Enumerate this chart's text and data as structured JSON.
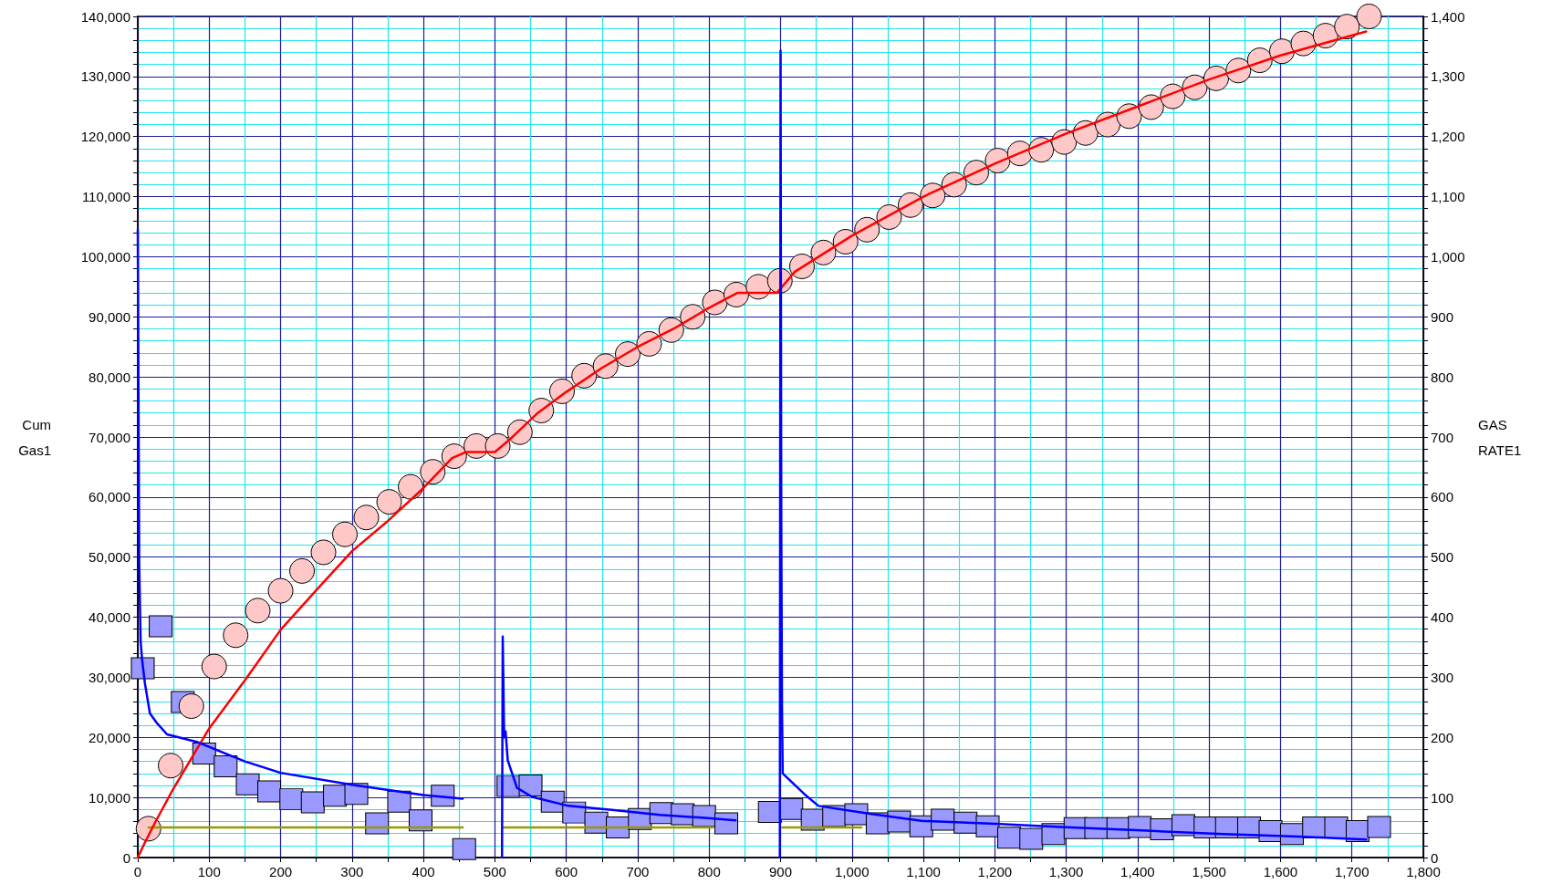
{
  "chart_data": {
    "type": "scatter",
    "ylabel": "Cum\nGas1",
    "y2label": "GAS\nRATE1",
    "xlim": [
      0,
      1800
    ],
    "xticks": [
      0,
      {
        "value": 50,
        "label": null
      },
      100,
      {
        "value": 150,
        "label": null
      },
      200,
      {
        "value": 250,
        "label": null
      },
      300,
      {
        "value": 350,
        "label": null
      },
      400,
      {
        "value": 450,
        "label": null
      },
      500,
      {
        "value": 550,
        "label": null
      },
      600,
      {
        "value": 650,
        "label": null
      },
      700,
      {
        "value": 750,
        "label": null
      },
      800,
      {
        "value": 850,
        "label": null
      },
      900,
      {
        "value": 950,
        "label": null
      },
      {
        "value": 1000,
        "label": "1,000"
      },
      {
        "value": 1050,
        "label": null
      },
      {
        "value": 1100,
        "label": "1,100"
      },
      {
        "value": 1150,
        "label": null
      },
      {
        "value": 1200,
        "label": "1,200"
      },
      {
        "value": 1250,
        "label": null
      },
      {
        "value": 1300,
        "label": "1,300"
      },
      {
        "value": 1350,
        "label": null
      },
      {
        "value": 1400,
        "label": "1,400"
      },
      {
        "value": 1450,
        "label": null
      },
      {
        "value": 1500,
        "label": "1,500"
      },
      {
        "value": 1550,
        "label": null
      },
      {
        "value": 1600,
        "label": "1,600"
      },
      {
        "value": 1650,
        "label": null
      },
      {
        "value": 1700,
        "label": "1,700"
      },
      {
        "value": 1750,
        "label": null
      },
      {
        "value": 1800,
        "label": "1,800"
      }
    ],
    "ylim": [
      0,
      140000
    ],
    "yticks": [
      0,
      {
        "value": 2000,
        "label": null
      },
      {
        "value": 4000,
        "label": null
      },
      {
        "value": 6000,
        "label": null
      },
      {
        "value": 8000,
        "label": null
      },
      {
        "value": 10000,
        "label": "10,000"
      },
      {
        "value": 12000,
        "label": null
      },
      {
        "value": 14000,
        "label": null
      },
      {
        "value": 16000,
        "label": null
      },
      {
        "value": 18000,
        "label": null
      },
      {
        "value": 20000,
        "label": "20,000"
      },
      {
        "value": 22000,
        "label": null
      },
      {
        "value": 24000,
        "label": null
      },
      {
        "value": 26000,
        "label": null
      },
      {
        "value": 28000,
        "label": null
      },
      {
        "value": 30000,
        "label": "30,000"
      },
      {
        "value": 32000,
        "label": null
      },
      {
        "value": 34000,
        "label": null
      },
      {
        "value": 36000,
        "label": null
      },
      {
        "value": 38000,
        "label": null
      },
      {
        "value": 40000,
        "label": "40,000"
      },
      {
        "value": 42000,
        "label": null
      },
      {
        "value": 44000,
        "label": null
      },
      {
        "value": 46000,
        "label": null
      },
      {
        "value": 48000,
        "label": null
      },
      {
        "value": 50000,
        "label": "50,000"
      },
      {
        "value": 52000,
        "label": null
      },
      {
        "value": 54000,
        "label": null
      },
      {
        "value": 56000,
        "label": null
      },
      {
        "value": 58000,
        "label": null
      },
      {
        "value": 60000,
        "label": "60,000"
      },
      {
        "value": 62000,
        "label": null
      },
      {
        "value": 64000,
        "label": null
      },
      {
        "value": 66000,
        "label": null
      },
      {
        "value": 68000,
        "label": null
      },
      {
        "value": 70000,
        "label": "70,000"
      },
      {
        "value": 72000,
        "label": null
      },
      {
        "value": 74000,
        "label": null
      },
      {
        "value": 76000,
        "label": null
      },
      {
        "value": 78000,
        "label": null
      },
      {
        "value": 80000,
        "label": "80,000"
      },
      {
        "value": 82000,
        "label": null
      },
      {
        "value": 84000,
        "label": null
      },
      {
        "value": 86000,
        "label": null
      },
      {
        "value": 88000,
        "label": null
      },
      {
        "value": 90000,
        "label": "90,000"
      },
      {
        "value": 92000,
        "label": null
      },
      {
        "value": 94000,
        "label": null
      },
      {
        "value": 96000,
        "label": null
      },
      {
        "value": 98000,
        "label": null
      },
      {
        "value": 100000,
        "label": "100,000"
      },
      {
        "value": 102000,
        "label": null
      },
      {
        "value": 104000,
        "label": null
      },
      {
        "value": 106000,
        "label": null
      },
      {
        "value": 108000,
        "label": null
      },
      {
        "value": 110000,
        "label": "110,000"
      },
      {
        "value": 112000,
        "label": null
      },
      {
        "value": 114000,
        "label": null
      },
      {
        "value": 116000,
        "label": null
      },
      {
        "value": 118000,
        "label": null
      },
      {
        "value": 120000,
        "label": "120,000"
      },
      {
        "value": 122000,
        "label": null
      },
      {
        "value": 124000,
        "label": null
      },
      {
        "value": 126000,
        "label": null
      },
      {
        "value": 128000,
        "label": null
      },
      {
        "value": 130000,
        "label": "130,000"
      },
      {
        "value": 132000,
        "label": null
      },
      {
        "value": 134000,
        "label": null
      },
      {
        "value": 136000,
        "label": null
      },
      {
        "value": 138000,
        "label": null
      },
      {
        "value": 140000,
        "label": "140,000"
      }
    ],
    "y2lim": [
      0,
      1400
    ],
    "y2ticks": [
      0,
      {
        "value": 20,
        "label": null
      },
      {
        "value": 40,
        "label": null
      },
      {
        "value": 60,
        "label": null
      },
      {
        "value": 80,
        "label": null
      },
      100,
      {
        "value": 120,
        "label": null
      },
      {
        "value": 140,
        "label": null
      },
      {
        "value": 160,
        "label": null
      },
      {
        "value": 180,
        "label": null
      },
      200,
      {
        "value": 220,
        "label": null
      },
      {
        "value": 240,
        "label": null
      },
      {
        "value": 260,
        "label": null
      },
      {
        "value": 280,
        "label": null
      },
      300,
      {
        "value": 320,
        "label": null
      },
      {
        "value": 340,
        "label": null
      },
      {
        "value": 360,
        "label": null
      },
      {
        "value": 380,
        "label": null
      },
      400,
      {
        "value": 420,
        "label": null
      },
      {
        "value": 440,
        "label": null
      },
      {
        "value": 460,
        "label": null
      },
      {
        "value": 480,
        "label": null
      },
      500,
      {
        "value": 520,
        "label": null
      },
      {
        "value": 540,
        "label": null
      },
      {
        "value": 560,
        "label": null
      },
      {
        "value": 580,
        "label": null
      },
      600,
      {
        "value": 620,
        "label": null
      },
      {
        "value": 640,
        "label": null
      },
      {
        "value": 660,
        "label": null
      },
      {
        "value": 680,
        "label": null
      },
      700,
      {
        "value": 720,
        "label": null
      },
      {
        "value": 740,
        "label": null
      },
      {
        "value": 760,
        "label": null
      },
      {
        "value": 780,
        "label": null
      },
      800,
      {
        "value": 820,
        "label": null
      },
      {
        "value": 840,
        "label": null
      },
      {
        "value": 860,
        "label": null
      },
      {
        "value": 880,
        "label": null
      },
      900,
      {
        "value": 920,
        "label": null
      },
      {
        "value": 940,
        "label": null
      },
      {
        "value": 960,
        "label": null
      },
      {
        "value": 980,
        "label": null
      },
      {
        "value": 1000,
        "label": "1,000"
      },
      {
        "value": 1020,
        "label": null
      },
      {
        "value": 1040,
        "label": null
      },
      {
        "value": 1060,
        "label": null
      },
      {
        "value": 1080,
        "label": null
      },
      {
        "value": 1100,
        "label": "1,100"
      },
      {
        "value": 1120,
        "label": null
      },
      {
        "value": 1140,
        "label": null
      },
      {
        "value": 1160,
        "label": null
      },
      {
        "value": 1180,
        "label": null
      },
      {
        "value": 1200,
        "label": "1,200"
      },
      {
        "value": 1220,
        "label": null
      },
      {
        "value": 1240,
        "label": null
      },
      {
        "value": 1260,
        "label": null
      },
      {
        "value": 1280,
        "label": null
      },
      {
        "value": 1300,
        "label": "1,300"
      },
      {
        "value": 1320,
        "label": null
      },
      {
        "value": 1340,
        "label": null
      },
      {
        "value": 1360,
        "label": null
      },
      {
        "value": 1380,
        "label": null
      },
      {
        "value": 1400,
        "label": "1,400"
      }
    ],
    "grid": true,
    "series": [
      {
        "marker": "square",
        "axis": "y2",
        "color": "#9999ff",
        "x": [
          7,
          32,
          63,
          93,
          123,
          154,
          184,
          215,
          245,
          276,
          306,
          335,
          366,
          396,
          427,
          457,
          519,
          550,
          581,
          611,
          642,
          672,
          703,
          733,
          763,
          793,
          824,
          885,
          915,
          945,
          975,
          1006,
          1036,
          1066,
          1097,
          1127,
          1159,
          1190,
          1220,
          1251,
          1282,
          1313,
          1342,
          1373,
          1403,
          1434,
          1464,
          1495,
          1525,
          1556,
          1586,
          1616,
          1647,
          1678,
          1708,
          1738
        ],
        "values": [
          315,
          385,
          259,
          173,
          152,
          122,
          110,
          97,
          92,
          103,
          106,
          57,
          93,
          62,
          103,
          14,
          119,
          120,
          93,
          75,
          58,
          50,
          64,
          74,
          72,
          69,
          57,
          76,
          81,
          63,
          69,
          72,
          57,
          60,
          52,
          63,
          58,
          52,
          33,
          31,
          39,
          49,
          49,
          49,
          51,
          47,
          54,
          50,
          50,
          50,
          44,
          39,
          50,
          50,
          44,
          51
        ]
      },
      {
        "marker": "circle",
        "color": "#ffc8c8",
        "x": [
          15,
          46,
          75,
          107,
          137,
          168,
          200,
          230,
          260,
          290,
          320,
          352,
          382,
          413,
          443,
          474,
          504,
          535,
          565,
          594,
          625,
          655,
          686,
          716,
          747,
          777,
          808,
          838,
          869,
          899,
          930,
          960,
          991,
          1021,
          1052,
          1082,
          1113,
          1143,
          1174,
          1204,
          1235,
          1265,
          1297,
          1327,
          1358,
          1388,
          1419,
          1449,
          1480,
          1510,
          1541,
          1571,
          1602,
          1632,
          1663,
          1693,
          1724
        ],
        "values": [
          4800,
          15300,
          25200,
          31800,
          37000,
          41100,
          44400,
          47700,
          50800,
          53800,
          56600,
          59200,
          61700,
          64200,
          66800,
          68500,
          68500,
          70800,
          74400,
          77600,
          80200,
          81800,
          83800,
          85500,
          87800,
          90000,
          92400,
          93700,
          95000,
          96000,
          98400,
          100700,
          102500,
          104500,
          106600,
          108600,
          110200,
          112000,
          114000,
          116000,
          117200,
          117800,
          119100,
          120600,
          122000,
          123400,
          124900,
          126700,
          128200,
          129700,
          131000,
          132700,
          134200,
          135500,
          136800,
          138300,
          140000
        ]
      },
      {
        "type": "line",
        "marker": "none",
        "axis": "y2",
        "color": "#999900",
        "x": [
          15,
          455,
          480,
          512,
          805,
          850,
          902,
          1013
        ],
        "values": [
          50,
          50,
          null,
          50,
          50,
          null,
          50,
          50
        ]
      },
      {
        "type": "line",
        "marker": "none",
        "color": "#ff0000",
        "x": [
          0,
          10,
          25,
          50,
          75,
          100,
          150,
          200,
          250,
          300,
          350,
          400,
          440,
          460,
          500,
          520,
          560,
          600,
          650,
          700,
          750,
          800,
          840,
          870,
          895,
          920,
          960,
          1000,
          1100,
          1200,
          1300,
          1400,
          1500,
          1600,
          1720
        ],
        "values": [
          0,
          2500,
          6000,
          11500,
          16500,
          21500,
          29500,
          37900,
          44500,
          51000,
          56000,
          61500,
          66500,
          67500,
          67500,
          69500,
          74000,
          77500,
          81500,
          85000,
          88000,
          91500,
          94000,
          94000,
          94000,
          97500,
          100500,
          103500,
          110000,
          115500,
          120500,
          125000,
          129500,
          133500,
          137500
        ]
      },
      {
        "type": "line",
        "marker": "none",
        "axis": "y2",
        "color": "#0000ff",
        "x": [
          0,
          2,
          4,
          6,
          10,
          17,
          26,
          41,
          84,
          150,
          200,
          300,
          400,
          455,
          480,
          510,
          511,
          513,
          515,
          518,
          531,
          552,
          603,
          667,
          731,
          794,
          837,
          870,
          899,
          900,
          901,
          902,
          903,
          933,
          953,
          1025,
          1097,
          1201,
          1292,
          1406,
          1520,
          1625,
          1720
        ],
        "values": [
          1045,
          490,
          360,
          330,
          290,
          240,
          225,
          205,
          192,
          160,
          141,
          121,
          104,
          98,
          null,
          0,
          368,
          200,
          210,
          162,
          116,
          101,
          86,
          79,
          71,
          66,
          62,
          null,
          0,
          1343,
          560,
          250,
          140,
          106,
          86,
          73,
          61,
          56,
          51,
          45,
          39,
          35,
          30
        ]
      }
    ]
  }
}
